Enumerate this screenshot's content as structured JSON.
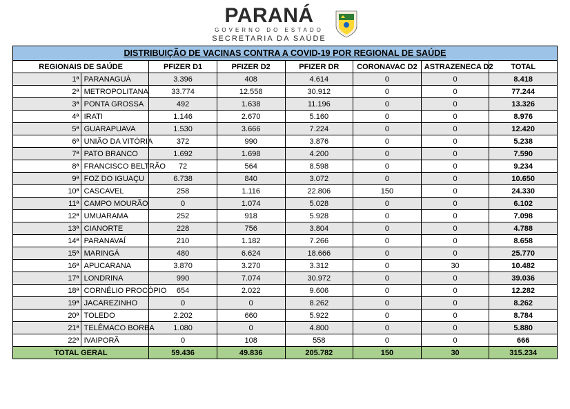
{
  "header": {
    "state": "PARANÁ",
    "subtitle1": "GOVERNO DO ESTADO",
    "subtitle2": "SECRETARIA DA SAÚDE"
  },
  "table": {
    "title": "DISTRIBUIÇÃO DE VACINAS CONTRA A COVID-19 POR REGIONAL DE SAÚDE",
    "columns": [
      "REGIONAIS DE SAÚDE",
      "PFIZER D1",
      "PFIZER D2",
      "PFIZER DR",
      "CORONAVAC D2",
      "ASTRAZENECA D2",
      "TOTAL"
    ],
    "rows": [
      {
        "idx": "1ª",
        "name": "PARANAGUÁ",
        "d1": "3.396",
        "d2": "408",
        "dr": "4.614",
        "cv": "0",
        "az": "0",
        "tot": "8.418"
      },
      {
        "idx": "2ª",
        "name": "METROPOLITANA",
        "d1": "33.774",
        "d2": "12.558",
        "dr": "30.912",
        "cv": "0",
        "az": "0",
        "tot": "77.244"
      },
      {
        "idx": "3ª",
        "name": "PONTA GROSSA",
        "d1": "492",
        "d2": "1.638",
        "dr": "11.196",
        "cv": "0",
        "az": "0",
        "tot": "13.326"
      },
      {
        "idx": "4ª",
        "name": "IRATI",
        "d1": "1.146",
        "d2": "2.670",
        "dr": "5.160",
        "cv": "0",
        "az": "0",
        "tot": "8.976"
      },
      {
        "idx": "5ª",
        "name": "GUARAPUAVA",
        "d1": "1.530",
        "d2": "3.666",
        "dr": "7.224",
        "cv": "0",
        "az": "0",
        "tot": "12.420"
      },
      {
        "idx": "6ª",
        "name": "UNIÃO DA VITÓRIA",
        "d1": "372",
        "d2": "990",
        "dr": "3.876",
        "cv": "0",
        "az": "0",
        "tot": "5.238"
      },
      {
        "idx": "7ª",
        "name": "PATO BRANCO",
        "d1": "1.692",
        "d2": "1.698",
        "dr": "4.200",
        "cv": "0",
        "az": "0",
        "tot": "7.590"
      },
      {
        "idx": "8ª",
        "name": "FRANCISCO BELTRÃO",
        "d1": "72",
        "d2": "564",
        "dr": "8.598",
        "cv": "0",
        "az": "0",
        "tot": "9.234"
      },
      {
        "idx": "9ª",
        "name": "FOZ DO IGUAÇU",
        "d1": "6.738",
        "d2": "840",
        "dr": "3.072",
        "cv": "0",
        "az": "0",
        "tot": "10.650"
      },
      {
        "idx": "10ª",
        "name": "CASCAVEL",
        "d1": "258",
        "d2": "1.116",
        "dr": "22.806",
        "cv": "150",
        "az": "0",
        "tot": "24.330"
      },
      {
        "idx": "11ª",
        "name": "CAMPO MOURÃO",
        "d1": "0",
        "d2": "1.074",
        "dr": "5.028",
        "cv": "0",
        "az": "0",
        "tot": "6.102"
      },
      {
        "idx": "12ª",
        "name": "UMUARAMA",
        "d1": "252",
        "d2": "918",
        "dr": "5.928",
        "cv": "0",
        "az": "0",
        "tot": "7.098"
      },
      {
        "idx": "13ª",
        "name": "CIANORTE",
        "d1": "228",
        "d2": "756",
        "dr": "3.804",
        "cv": "0",
        "az": "0",
        "tot": "4.788"
      },
      {
        "idx": "14ª",
        "name": "PARANAVAÍ",
        "d1": "210",
        "d2": "1.182",
        "dr": "7.266",
        "cv": "0",
        "az": "0",
        "tot": "8.658"
      },
      {
        "idx": "15ª",
        "name": "MARINGÁ",
        "d1": "480",
        "d2": "6.624",
        "dr": "18.666",
        "cv": "0",
        "az": "0",
        "tot": "25.770"
      },
      {
        "idx": "16ª",
        "name": "APUCARANA",
        "d1": "3.870",
        "d2": "3.270",
        "dr": "3.312",
        "cv": "0",
        "az": "30",
        "tot": "10.482"
      },
      {
        "idx": "17ª",
        "name": "LONDRINA",
        "d1": "990",
        "d2": "7.074",
        "dr": "30.972",
        "cv": "0",
        "az": "0",
        "tot": "39.036"
      },
      {
        "idx": "18ª",
        "name": "CORNÉLIO PROCÓPIO",
        "d1": "654",
        "d2": "2.022",
        "dr": "9.606",
        "cv": "0",
        "az": "0",
        "tot": "12.282"
      },
      {
        "idx": "19ª",
        "name": "JACAREZINHO",
        "d1": "0",
        "d2": "0",
        "dr": "8.262",
        "cv": "0",
        "az": "0",
        "tot": "8.262"
      },
      {
        "idx": "20ª",
        "name": "TOLEDO",
        "d1": "2.202",
        "d2": "660",
        "dr": "5.922",
        "cv": "0",
        "az": "0",
        "tot": "8.784"
      },
      {
        "idx": "21ª",
        "name": "TELÊMACO BORBA",
        "d1": "1.080",
        "d2": "0",
        "dr": "4.800",
        "cv": "0",
        "az": "0",
        "tot": "5.880"
      },
      {
        "idx": "22ª",
        "name": "IVAIPORÃ",
        "d1": "0",
        "d2": "108",
        "dr": "558",
        "cv": "0",
        "az": "0",
        "tot": "666"
      }
    ],
    "grand": {
      "label": "TOTAL GERAL",
      "d1": "59.436",
      "d2": "49.836",
      "dr": "205.782",
      "cv": "150",
      "az": "30",
      "tot": "315.234"
    },
    "colors": {
      "title_bg": "#9dc3e6",
      "odd_bg": "#e7e6e6",
      "even_bg": "#ffffff",
      "grand_bg": "#a9d08e",
      "border": "#000000"
    }
  }
}
